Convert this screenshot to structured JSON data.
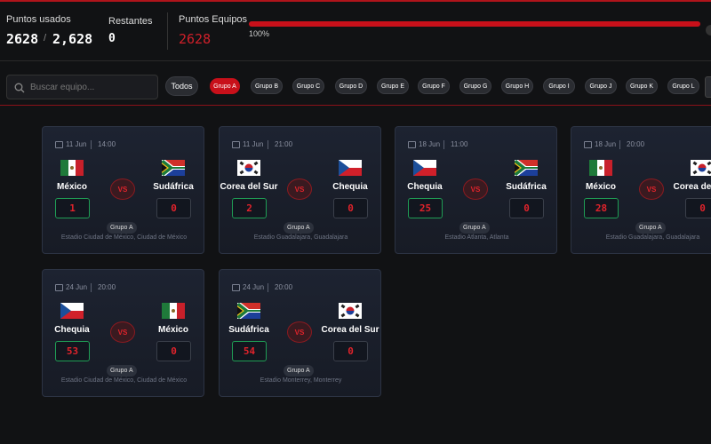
{
  "header": {
    "used_label": "Puntos usados",
    "used_value": "2628",
    "used_separator": "/",
    "used_total": "2,628",
    "remaining_label": "Restantes",
    "remaining_value": "0",
    "team_points_label": "Puntos Equipos",
    "team_points_value": "2628",
    "progress_label": "100%"
  },
  "search": {
    "placeholder": "Buscar equipo..."
  },
  "filters": [
    "Todos",
    "Grupo A",
    "Grupo B",
    "Grupo C",
    "Grupo D",
    "Grupo E",
    "Grupo F",
    "Grupo G",
    "Grupo H",
    "Grupo I",
    "Grupo J",
    "Grupo K",
    "Grupo L"
  ],
  "matches": [
    {
      "date": "11 Jun",
      "time": "14:00",
      "home": "México",
      "away": "Sudáfrica",
      "home_score": 1,
      "away_score": 0,
      "vs": "VS",
      "group": "Grupo A",
      "venue": "Estadio Ciudad de México, Ciudad de México"
    },
    {
      "date": "11 Jun",
      "time": "21:00",
      "home": "Corea del Sur",
      "away": "Chequia",
      "home_score": 2,
      "away_score": 0,
      "vs": "VS",
      "group": "Grupo A",
      "venue": "Estadio Guadalajara, Guadalajara"
    },
    {
      "date": "18 Jun",
      "time": "11:00",
      "home": "Chequia",
      "away": "Sudáfrica",
      "home_score": 25,
      "away_score": 0,
      "vs": "VS",
      "group": "Grupo A",
      "venue": "Estadio Atlanta, Atlanta"
    },
    {
      "date": "18 Jun",
      "time": "20:00",
      "home": "México",
      "away": "Corea del Sur",
      "home_score": 28,
      "away_score": 0,
      "vs": "VS",
      "group": "Grupo A",
      "venue": "Estadio Guadalajara, Guadalajara"
    },
    {
      "date": "24 Jun",
      "time": "20:00",
      "home": "Chequia",
      "away": "México",
      "home_score": 53,
      "away_score": 0,
      "vs": "VS",
      "group": "Grupo A",
      "venue": "Estadio Ciudad de México, Ciudad de México"
    },
    {
      "date": "24 Jun",
      "time": "20:00",
      "home": "Sudáfrica",
      "away": "Corea del Sur",
      "home_score": 54,
      "away_score": 0,
      "vs": "VS",
      "group": "Grupo A",
      "venue": "Estadio Monterrey, Monterrey"
    }
  ]
}
